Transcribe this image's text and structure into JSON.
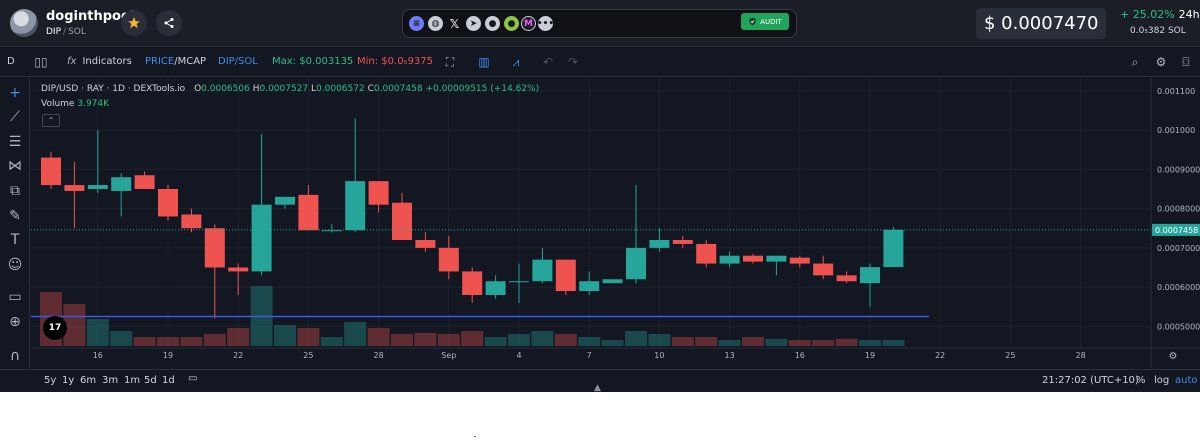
{
  "header": {
    "token_name": "doginthpool",
    "pair_base": "DIP",
    "pair_sep": "/",
    "pair_quote": "SOL",
    "star_icon": "star-icon",
    "share_icon": "share-icon",
    "social_icons": [
      "website-icon",
      "globe-icon",
      "x-icon",
      "telegram-icon",
      "reddit-icon",
      "coingecko-icon",
      "other-icon",
      "more-icon"
    ],
    "audit_label": "AUDIT",
    "price_usd": "$ 0.0007470",
    "change": "+ 25.02%",
    "change_period": "24h",
    "price_sol": "0.0₅382 SOL"
  },
  "toolbar": {
    "interval": "D",
    "indicators_label": "Indicators",
    "price_label": "PRICE",
    "mcap_label": "MCAP",
    "slash": "/",
    "pair_toggle": "DIP/SOL",
    "max_label": "Max: $0.003135",
    "min_label": "Min: $0.0₅9375"
  },
  "legend": {
    "title": "DIP/USD · RAY · 1D · DEXTools.io",
    "o_label": "O",
    "o_val": "0.0006506",
    "h_label": "H",
    "h_val": "0.0007527",
    "l_label": "L",
    "l_val": "0.0006572",
    "c_label": "C",
    "c_val": "0.0007458",
    "change": "+0.00009515 (+14.62%)",
    "volume_label": "Volume",
    "volume_val": "3.974K"
  },
  "colors": {
    "up": "#26a69a",
    "down": "#ef5350",
    "accent": "#3e8ee9",
    "positive": "#2bbf86"
  },
  "chart_data": {
    "type": "candlestick",
    "y_ticks": [
      "0.001100",
      "0.001000",
      "0.0009000",
      "0.0008000",
      "0.0007000",
      "0.0006000",
      "0.0005000"
    ],
    "ylim": [
      0.00045,
      0.00112
    ],
    "last_price_label": "0.0007458",
    "last_price": 0.0007458,
    "hline": 0.000525,
    "x_ticks": [
      "16",
      "19",
      "22",
      "25",
      "28",
      "Sep",
      "4",
      "7",
      "10",
      "13",
      "16",
      "19",
      "22",
      "25",
      "28"
    ],
    "candles": [
      {
        "o": 0.00093,
        "h": 0.000945,
        "l": 0.00085,
        "c": 0.00086
      },
      {
        "o": 0.00086,
        "h": 0.00092,
        "l": 0.00075,
        "c": 0.000845
      },
      {
        "o": 0.00085,
        "h": 0.001,
        "l": 0.00084,
        "c": 0.00086
      },
      {
        "o": 0.000845,
        "h": 0.00089,
        "l": 0.00078,
        "c": 0.00088
      },
      {
        "o": 0.000885,
        "h": 0.000895,
        "l": 0.00085,
        "c": 0.00085
      },
      {
        "o": 0.00085,
        "h": 0.00086,
        "l": 0.00077,
        "c": 0.00078
      },
      {
        "o": 0.000785,
        "h": 0.0008,
        "l": 0.00074,
        "c": 0.00075
      },
      {
        "o": 0.00075,
        "h": 0.00076,
        "l": 0.00052,
        "c": 0.00065
      },
      {
        "o": 0.00065,
        "h": 0.00066,
        "l": 0.00058,
        "c": 0.00064
      },
      {
        "o": 0.00064,
        "h": 0.00099,
        "l": 0.00063,
        "c": 0.00081
      },
      {
        "o": 0.00081,
        "h": 0.00083,
        "l": 0.0008,
        "c": 0.00083
      },
      {
        "o": 0.000835,
        "h": 0.00086,
        "l": 0.00075,
        "c": 0.000745
      },
      {
        "o": 0.000745,
        "h": 0.00076,
        "l": 0.00074,
        "c": 0.000745
      },
      {
        "o": 0.000745,
        "h": 0.00103,
        "l": 0.00074,
        "c": 0.00087
      },
      {
        "o": 0.00087,
        "h": 0.00087,
        "l": 0.00079,
        "c": 0.00081
      },
      {
        "o": 0.000815,
        "h": 0.00084,
        "l": 0.00072,
        "c": 0.00072
      },
      {
        "o": 0.00072,
        "h": 0.00074,
        "l": 0.00069,
        "c": 0.0007
      },
      {
        "o": 0.0007,
        "h": 0.00073,
        "l": 0.00062,
        "c": 0.00064
      },
      {
        "o": 0.00064,
        "h": 0.00065,
        "l": 0.00056,
        "c": 0.00058
      },
      {
        "o": 0.00058,
        "h": 0.00063,
        "l": 0.00057,
        "c": 0.000615
      },
      {
        "o": 0.000615,
        "h": 0.00066,
        "l": 0.00056,
        "c": 0.000615
      },
      {
        "o": 0.000615,
        "h": 0.0007,
        "l": 0.00061,
        "c": 0.00067
      },
      {
        "o": 0.00067,
        "h": 0.00067,
        "l": 0.00058,
        "c": 0.00059
      },
      {
        "o": 0.00059,
        "h": 0.00064,
        "l": 0.00058,
        "c": 0.000615
      },
      {
        "o": 0.00061,
        "h": 0.00062,
        "l": 0.00061,
        "c": 0.00062
      },
      {
        "o": 0.00062,
        "h": 0.00086,
        "l": 0.00061,
        "c": 0.0007
      },
      {
        "o": 0.0007,
        "h": 0.00075,
        "l": 0.00069,
        "c": 0.00072
      },
      {
        "o": 0.00072,
        "h": 0.00073,
        "l": 0.0007,
        "c": 0.00071
      },
      {
        "o": 0.00071,
        "h": 0.00072,
        "l": 0.00065,
        "c": 0.00066
      },
      {
        "o": 0.00066,
        "h": 0.00069,
        "l": 0.00065,
        "c": 0.00068
      },
      {
        "o": 0.00068,
        "h": 0.000685,
        "l": 0.00066,
        "c": 0.000665
      },
      {
        "o": 0.000665,
        "h": 0.00068,
        "l": 0.00063,
        "c": 0.00068
      },
      {
        "o": 0.000675,
        "h": 0.00068,
        "l": 0.00065,
        "c": 0.00066
      },
      {
        "o": 0.00066,
        "h": 0.00068,
        "l": 0.00062,
        "c": 0.00063
      },
      {
        "o": 0.00063,
        "h": 0.00064,
        "l": 0.00061,
        "c": 0.000615
      },
      {
        "o": 0.00061,
        "h": 0.00066,
        "l": 0.00055,
        "c": 0.000651
      },
      {
        "o": 0.000651,
        "h": 0.000753,
        "l": 0.000657,
        "c": 0.000746
      }
    ],
    "volumes": [
      0.9,
      0.7,
      0.45,
      0.25,
      0.15,
      0.15,
      0.15,
      0.2,
      0.3,
      1.0,
      0.35,
      0.3,
      0.15,
      0.4,
      0.3,
      0.2,
      0.22,
      0.2,
      0.25,
      0.15,
      0.2,
      0.25,
      0.2,
      0.15,
      0.1,
      0.25,
      0.2,
      0.15,
      0.15,
      0.1,
      0.15,
      0.12,
      0.1,
      0.1,
      0.12,
      0.1,
      0.1
    ]
  },
  "bottom": {
    "ranges": [
      "5y",
      "1y",
      "6m",
      "3m",
      "1m",
      "5d",
      "1d"
    ],
    "time": "21:27:02 (UTC+10)",
    "percent": "%",
    "log": "log",
    "auto": "auto"
  }
}
